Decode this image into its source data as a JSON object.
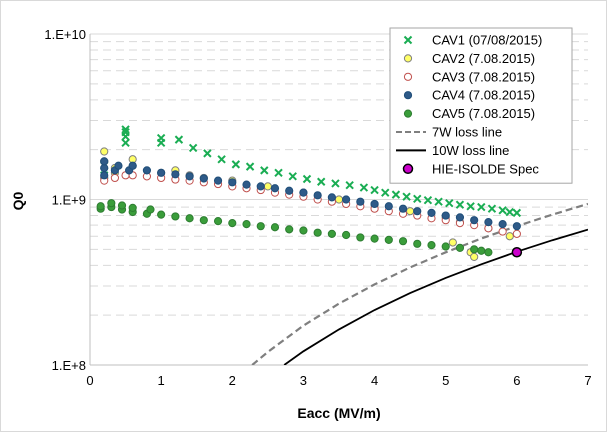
{
  "chart_data": {
    "type": "scatter",
    "title": "",
    "xlabel": "Eacc (MV/m)",
    "ylabel": "Q0",
    "xlim": [
      0,
      7
    ],
    "ylim": [
      100000000.0,
      10000000000.0
    ],
    "yscale": "log",
    "x_ticks": [
      "0",
      "1",
      "2",
      "3",
      "4",
      "5",
      "6",
      "7"
    ],
    "y_ticks": [
      "1.E+8",
      "1.E+9",
      "1.E+10"
    ],
    "grid": "horizontal dashed at log minor ticks",
    "legend_position": "top-right",
    "series": [
      {
        "name": "CAV1 (07/08/2015)",
        "marker": "x",
        "color": "#1aad53",
        "fill": "none",
        "points": [
          [
            0.2,
            1400000000.0
          ],
          [
            0.2,
            1600000000.0
          ],
          [
            0.5,
            2200000000.0
          ],
          [
            0.5,
            2400000000.0
          ],
          [
            0.5,
            2550000000.0
          ],
          [
            0.5,
            2650000000.0
          ],
          [
            1.0,
            2200000000.0
          ],
          [
            1.0,
            2350000000.0
          ],
          [
            1.25,
            2300000000.0
          ],
          [
            1.45,
            2050000000.0
          ],
          [
            1.65,
            1900000000.0
          ],
          [
            1.85,
            1750000000.0
          ],
          [
            2.05,
            1630000000.0
          ],
          [
            2.25,
            1580000000.0
          ],
          [
            2.45,
            1500000000.0
          ],
          [
            2.65,
            1450000000.0
          ],
          [
            2.85,
            1380000000.0
          ],
          [
            3.05,
            1330000000.0
          ],
          [
            3.25,
            1280000000.0
          ],
          [
            3.45,
            1250000000.0
          ],
          [
            3.65,
            1220000000.0
          ],
          [
            3.85,
            1180000000.0
          ],
          [
            4.0,
            1140000000.0
          ],
          [
            4.15,
            1100000000.0
          ],
          [
            4.3,
            1070000000.0
          ],
          [
            4.45,
            1040000000.0
          ],
          [
            4.6,
            1010000000.0
          ],
          [
            4.75,
            990000000.0
          ],
          [
            4.9,
            970000000.0
          ],
          [
            5.05,
            950000000.0
          ],
          [
            5.2,
            930000000.0
          ],
          [
            5.35,
            910000000.0
          ],
          [
            5.5,
            900000000.0
          ],
          [
            5.65,
            880000000.0
          ],
          [
            5.8,
            860000000.0
          ],
          [
            5.9,
            840000000.0
          ],
          [
            6.0,
            830000000.0
          ]
        ]
      },
      {
        "name": "CAV2 (7.08.2015)",
        "marker": "circle",
        "color": "#7f7f7f",
        "fill": "#ffff66",
        "points": [
          [
            0.2,
            1350000000.0
          ],
          [
            0.2,
            1700000000.0
          ],
          [
            0.2,
            1950000000.0
          ],
          [
            0.35,
            1450000000.0
          ],
          [
            0.35,
            1550000000.0
          ],
          [
            0.55,
            1450000000.0
          ],
          [
            0.6,
            1600000000.0
          ],
          [
            0.6,
            1750000000.0
          ],
          [
            1.0,
            1450000000.0
          ],
          [
            1.2,
            1500000000.0
          ],
          [
            1.4,
            1400000000.0
          ],
          [
            1.6,
            1350000000.0
          ],
          [
            2.0,
            1300000000.0
          ],
          [
            2.5,
            1200000000.0
          ],
          [
            3.0,
            1100000000.0
          ],
          [
            3.5,
            1000000000.0
          ],
          [
            4.0,
            930000000.0
          ],
          [
            4.5,
            850000000.0
          ],
          [
            5.0,
            780000000.0
          ],
          [
            5.1,
            550000000.0
          ],
          [
            5.2,
            730000000.0
          ],
          [
            5.35,
            480000000.0
          ],
          [
            5.4,
            450000000.0
          ],
          [
            5.6,
            670000000.0
          ],
          [
            5.9,
            600000000.0
          ]
        ]
      },
      {
        "name": "CAV3 (7.08.2015)",
        "marker": "circle",
        "color": "#c0504d",
        "fill": "#ffffff",
        "points": [
          [
            0.2,
            1300000000.0
          ],
          [
            0.35,
            1350000000.0
          ],
          [
            0.5,
            1400000000.0
          ],
          [
            0.6,
            1400000000.0
          ],
          [
            0.8,
            1380000000.0
          ],
          [
            1.0,
            1350000000.0
          ],
          [
            1.2,
            1320000000.0
          ],
          [
            1.4,
            1300000000.0
          ],
          [
            1.6,
            1270000000.0
          ],
          [
            1.8,
            1240000000.0
          ],
          [
            2.0,
            1200000000.0
          ],
          [
            2.2,
            1170000000.0
          ],
          [
            2.4,
            1140000000.0
          ],
          [
            2.6,
            1100000000.0
          ],
          [
            2.8,
            1070000000.0
          ],
          [
            3.0,
            1040000000.0
          ],
          [
            3.2,
            1000000000.0
          ],
          [
            3.4,
            970000000.0
          ],
          [
            3.6,
            940000000.0
          ],
          [
            3.8,
            910000000.0
          ],
          [
            4.0,
            880000000.0
          ],
          [
            4.2,
            850000000.0
          ],
          [
            4.4,
            820000000.0
          ],
          [
            4.6,
            800000000.0
          ],
          [
            4.8,
            770000000.0
          ],
          [
            5.0,
            750000000.0
          ],
          [
            5.2,
            720000000.0
          ],
          [
            5.4,
            700000000.0
          ],
          [
            5.6,
            670000000.0
          ],
          [
            5.8,
            640000000.0
          ],
          [
            6.0,
            620000000.0
          ]
        ]
      },
      {
        "name": "CAV4 (7.08.2015)",
        "marker": "circle",
        "color": "#1f4e79",
        "fill": "#2e5a88",
        "points": [
          [
            0.2,
            1400000000.0
          ],
          [
            0.2,
            1550000000.0
          ],
          [
            0.2,
            1700000000.0
          ],
          [
            0.35,
            1500000000.0
          ],
          [
            0.4,
            1600000000.0
          ],
          [
            0.55,
            1500000000.0
          ],
          [
            0.6,
            1600000000.0
          ],
          [
            0.8,
            1500000000.0
          ],
          [
            1.0,
            1450000000.0
          ],
          [
            1.2,
            1420000000.0
          ],
          [
            1.4,
            1380000000.0
          ],
          [
            1.6,
            1340000000.0
          ],
          [
            1.8,
            1300000000.0
          ],
          [
            2.0,
            1270000000.0
          ],
          [
            2.2,
            1230000000.0
          ],
          [
            2.4,
            1200000000.0
          ],
          [
            2.6,
            1170000000.0
          ],
          [
            2.8,
            1130000000.0
          ],
          [
            3.0,
            1100000000.0
          ],
          [
            3.2,
            1060000000.0
          ],
          [
            3.4,
            1030000000.0
          ],
          [
            3.6,
            1000000000.0
          ],
          [
            3.8,
            970000000.0
          ],
          [
            4.0,
            940000000.0
          ],
          [
            4.2,
            910000000.0
          ],
          [
            4.4,
            880000000.0
          ],
          [
            4.6,
            850000000.0
          ],
          [
            4.8,
            830000000.0
          ],
          [
            5.0,
            800000000.0
          ],
          [
            5.2,
            780000000.0
          ],
          [
            5.4,
            750000000.0
          ],
          [
            5.6,
            730000000.0
          ],
          [
            5.8,
            710000000.0
          ],
          [
            6.0,
            690000000.0
          ]
        ]
      },
      {
        "name": "CAV5 (7.08.2015)",
        "marker": "circle",
        "color": "#2e7d32",
        "fill": "#3a9d3a",
        "points": [
          [
            0.15,
            880000000.0
          ],
          [
            0.15,
            910000000.0
          ],
          [
            0.3,
            900000000.0
          ],
          [
            0.3,
            950000000.0
          ],
          [
            0.45,
            870000000.0
          ],
          [
            0.45,
            920000000.0
          ],
          [
            0.6,
            840000000.0
          ],
          [
            0.6,
            890000000.0
          ],
          [
            0.8,
            820000000.0
          ],
          [
            0.85,
            870000000.0
          ],
          [
            1.0,
            810000000.0
          ],
          [
            1.2,
            790000000.0
          ],
          [
            1.4,
            770000000.0
          ],
          [
            1.6,
            750000000.0
          ],
          [
            1.8,
            740000000.0
          ],
          [
            2.0,
            720000000.0
          ],
          [
            2.2,
            710000000.0
          ],
          [
            2.4,
            690000000.0
          ],
          [
            2.6,
            680000000.0
          ],
          [
            2.8,
            660000000.0
          ],
          [
            3.0,
            650000000.0
          ],
          [
            3.2,
            630000000.0
          ],
          [
            3.4,
            620000000.0
          ],
          [
            3.6,
            610000000.0
          ],
          [
            3.8,
            590000000.0
          ],
          [
            4.0,
            580000000.0
          ],
          [
            4.2,
            570000000.0
          ],
          [
            4.4,
            560000000.0
          ],
          [
            4.6,
            540000000.0
          ],
          [
            4.8,
            530000000.0
          ],
          [
            5.0,
            520000000.0
          ],
          [
            5.2,
            510000000.0
          ],
          [
            5.4,
            500000000.0
          ],
          [
            5.5,
            490000000.0
          ],
          [
            5.6,
            480000000.0
          ]
        ]
      },
      {
        "name": "7W loss line",
        "marker": "line-dashed",
        "color": "#7f7f7f",
        "points": [
          [
            2.28,
            100000000.0
          ],
          [
            2.5,
            120000000.0
          ],
          [
            3.0,
            173000000.0
          ],
          [
            3.5,
            235000000.0
          ],
          [
            4.0,
            307000000.0
          ],
          [
            4.5,
            389000000.0
          ],
          [
            5.0,
            480000000.0
          ],
          [
            5.5,
            581000000.0
          ],
          [
            6.0,
            691000000.0
          ],
          [
            6.5,
            811000000.0
          ],
          [
            7.0,
            941000000.0
          ]
        ]
      },
      {
        "name": "10W loss line",
        "marker": "line-solid",
        "color": "#000000",
        "points": [
          [
            2.73,
            100000000.0
          ],
          [
            3.0,
            121000000.0
          ],
          [
            3.5,
            164000000.0
          ],
          [
            4.0,
            215000000.0
          ],
          [
            4.5,
            272000000.0
          ],
          [
            5.0,
            336000000.0
          ],
          [
            5.5,
            406000000.0
          ],
          [
            6.0,
            484000000.0
          ],
          [
            6.5,
            568000000.0
          ],
          [
            7.0,
            658000000.0
          ]
        ]
      },
      {
        "name": "HIE-ISOLDE Spec",
        "marker": "circle-large",
        "color": "#000000",
        "fill": "#cc00cc",
        "points": [
          [
            6.0,
            480000000.0
          ]
        ]
      }
    ]
  }
}
